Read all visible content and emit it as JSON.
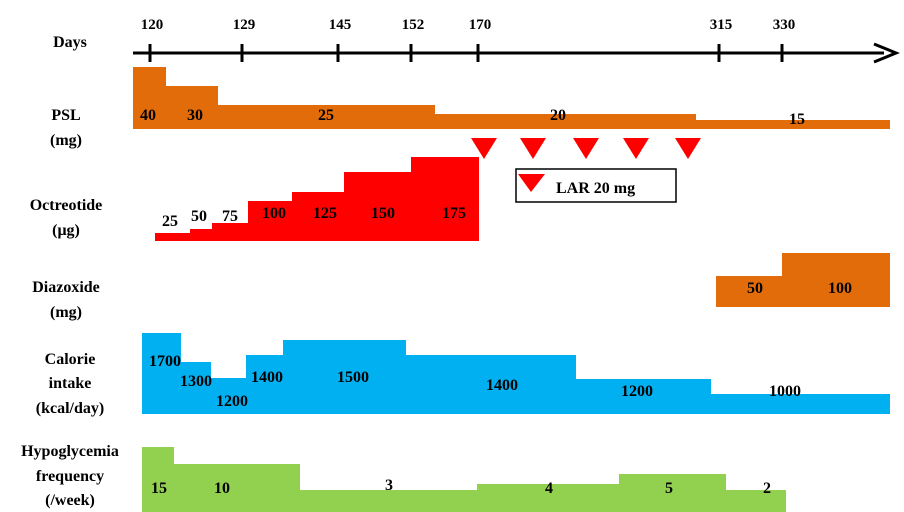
{
  "chart_data": {
    "type": "timeline-step-chart",
    "timeline": {
      "label": "Days",
      "ticks": [
        120,
        129,
        145,
        152,
        170,
        315,
        330
      ]
    },
    "rows": [
      {
        "key": "psl",
        "label_lines": [
          "PSL",
          "(mg)"
        ],
        "color": "#E36C0A",
        "steps": [
          {
            "level": 40,
            "label": "40"
          },
          {
            "level": 30,
            "label": "30"
          },
          {
            "level": 25,
            "label": "25"
          },
          {
            "level": 20,
            "label": "20"
          },
          {
            "level": 15,
            "label": "15"
          }
        ]
      },
      {
        "key": "octreotide",
        "label_lines": [
          "Octreotide",
          "(μg)"
        ],
        "color": "#FF0000",
        "steps": [
          {
            "level": 25,
            "label": "25"
          },
          {
            "level": 50,
            "label": "50"
          },
          {
            "level": 75,
            "label": "75"
          },
          {
            "level": 100,
            "label": "100"
          },
          {
            "level": 125,
            "label": "125"
          },
          {
            "level": 150,
            "label": "150"
          },
          {
            "level": 175,
            "label": "175"
          }
        ]
      },
      {
        "key": "diazoxide",
        "label_lines": [
          "Diazoxide",
          "(mg)"
        ],
        "color": "#E36C0A",
        "steps": [
          {
            "level": 50,
            "label": "50"
          },
          {
            "level": 100,
            "label": "100"
          }
        ]
      },
      {
        "key": "calorie",
        "label_lines": [
          "Calorie",
          "intake",
          "(kcal/day)"
        ],
        "color": "#00B0F0",
        "steps": [
          {
            "level": 1700,
            "label": "1700"
          },
          {
            "level": 1300,
            "label": "1300"
          },
          {
            "level": 1200,
            "label": "1200"
          },
          {
            "level": 1400,
            "label": "1400"
          },
          {
            "level": 1500,
            "label": "1500"
          },
          {
            "level": 1400,
            "label": "1400"
          },
          {
            "level": 1200,
            "label": "1200"
          },
          {
            "level": 1000,
            "label": "1000"
          }
        ]
      },
      {
        "key": "hypoglycemia",
        "label_lines": [
          "Hypoglycemia",
          "frequency",
          "(/week)"
        ],
        "color": "#92D050",
        "steps": [
          {
            "level": 15,
            "label": "15"
          },
          {
            "level": 10,
            "label": "10"
          },
          {
            "level": 3,
            "label": "3"
          },
          {
            "level": 4,
            "label": "4"
          },
          {
            "level": 5,
            "label": "5"
          },
          {
            "level": 2,
            "label": "2"
          }
        ]
      }
    ],
    "lar": {
      "legend": "LAR 20 mg",
      "count": 5,
      "color": "#FF0000"
    }
  }
}
